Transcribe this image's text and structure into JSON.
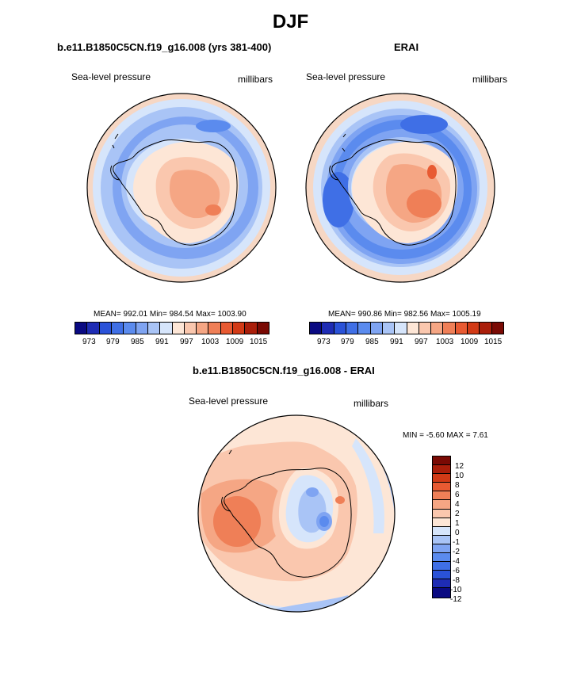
{
  "figure": {
    "season": "DJF",
    "colors": {
      "slp_levels": [
        "#0a0a82",
        "#1e2cb4",
        "#2a52d8",
        "#3f6fe6",
        "#5b8bee",
        "#7fa4f2",
        "#a9c4f6",
        "#d6e5fb",
        "#fde6d6",
        "#fac7ae",
        "#f5a684",
        "#ef7f57",
        "#e85a32",
        "#d23a16",
        "#aa1e0a",
        "#7a0a04"
      ],
      "diff_levels": [
        "#0a0a82",
        "#1e2cb4",
        "#2a52d8",
        "#3f6fe6",
        "#5b8bee",
        "#7fa4f2",
        "#a9c4f6",
        "#d6e5fb",
        "#fde6d6",
        "#fac7ae",
        "#f5a684",
        "#ef7f57",
        "#e85a32",
        "#d23a16",
        "#aa1e0a",
        "#7a0a04"
      ]
    },
    "panels": [
      {
        "id": "model",
        "title": "b.e11.B1850C5CN.f19_g16.008 (yrs 381-400)",
        "variable": "Sea-level pressure",
        "units": "millibars",
        "stats": {
          "mean": "992.01",
          "min": "984.54",
          "max": "1003.90"
        },
        "stats_text": "MEAN= 992.01  Min= 984.54  Max= 1003.90",
        "colorbar_ticks": [
          "973",
          "979",
          "985",
          "991",
          "997",
          "1003",
          "1009",
          "1015"
        ]
      },
      {
        "id": "obs",
        "title": "ERAI",
        "variable": "Sea-level pressure",
        "units": "millibars",
        "stats": {
          "mean": "990.86",
          "min": "982.56",
          "max": "1005.19"
        },
        "stats_text": "MEAN= 990.86  Min= 982.56  Max= 1005.19",
        "colorbar_ticks": [
          "973",
          "979",
          "985",
          "991",
          "997",
          "1003",
          "1009",
          "1015"
        ]
      }
    ],
    "difference": {
      "title": "b.e11.B1850C5CN.f19_g16.008 - ERAI",
      "variable": "Sea-level pressure",
      "units": "millibars",
      "min": "-5.60",
      "max": "7.61",
      "range_text": "MIN =  -5.60 MAX =  7.61",
      "colorbar_ticks": [
        "12",
        "10",
        "8",
        "6",
        "4",
        "2",
        "1",
        "0",
        "-1",
        "-2",
        "-4",
        "-6",
        "-8",
        "-10",
        "-12"
      ]
    }
  }
}
